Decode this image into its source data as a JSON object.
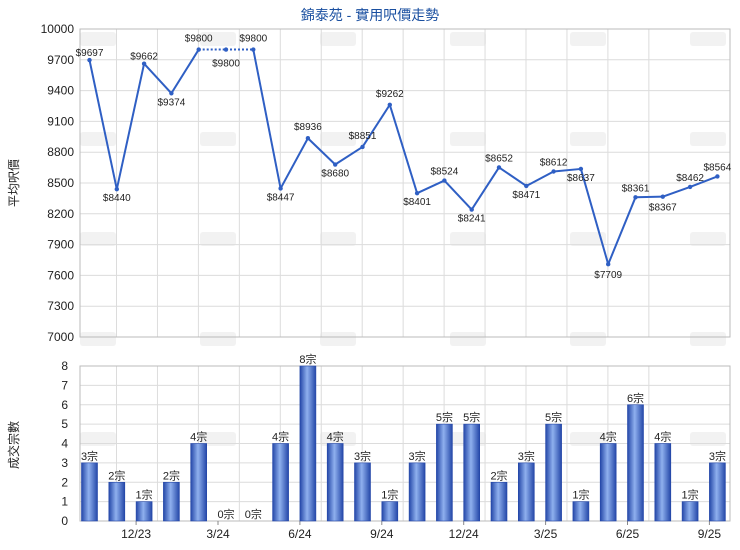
{
  "chart_data": [
    {
      "type": "line",
      "title": "錦泰苑 - 實用呎價走勢",
      "ylabel": "平均呎價",
      "ylim": [
        7000,
        10000
      ],
      "yticks": [
        7000,
        7300,
        7600,
        7900,
        8200,
        8500,
        8800,
        9100,
        9400,
        9700,
        10000
      ],
      "x_ticks": [
        "12/23",
        "3/24",
        "6/24",
        "9/24",
        "12/24",
        "3/25",
        "6/25",
        "9/25"
      ],
      "grid": true,
      "points": [
        {
          "label": "$9697",
          "value": 9697
        },
        {
          "label": "$8440",
          "value": 8440
        },
        {
          "label": "$9662",
          "value": 9662
        },
        {
          "label": "$9374",
          "value": 9374
        },
        {
          "label": "$9800",
          "value": 9800
        },
        {
          "label": "$9800",
          "value": 9800
        },
        {
          "label": "$9800",
          "value": 9800
        },
        {
          "label": "$8447",
          "value": 8447
        },
        {
          "label": "$8936",
          "value": 8936
        },
        {
          "label": "$8680",
          "value": 8680
        },
        {
          "label": "$8851",
          "value": 8851
        },
        {
          "label": "$9262",
          "value": 9262
        },
        {
          "label": "$8401",
          "value": 8401
        },
        {
          "label": "$8524",
          "value": 8524
        },
        {
          "label": "$8241",
          "value": 8241
        },
        {
          "label": "$8652",
          "value": 8652
        },
        {
          "label": "$8471",
          "value": 8471
        },
        {
          "label": "$8612",
          "value": 8612
        },
        {
          "label": "$8637",
          "value": 8637
        },
        {
          "label": "$7709",
          "value": 7709
        },
        {
          "label": "$8361",
          "value": 8361
        },
        {
          "label": "$8367",
          "value": 8367
        },
        {
          "label": "$8462",
          "value": 8462
        },
        {
          "label": "$8564",
          "value": 8564
        }
      ]
    },
    {
      "type": "bar",
      "ylabel": "成交宗數",
      "ylim": [
        0,
        8
      ],
      "yticks": [
        0,
        1,
        2,
        3,
        4,
        5,
        6,
        7,
        8
      ],
      "x_ticks": [
        "12/23",
        "3/24",
        "6/24",
        "9/24",
        "12/24",
        "3/25",
        "6/25",
        "9/25"
      ],
      "grid": true,
      "values": [
        3,
        2,
        1,
        2,
        4,
        0,
        0,
        4,
        8,
        4,
        3,
        1,
        3,
        5,
        5,
        2,
        3,
        5,
        1,
        4,
        6,
        4,
        1,
        3
      ],
      "labels": [
        "3宗",
        "2宗",
        "1宗",
        "2宗",
        "4宗",
        "0宗",
        "0宗",
        "4宗",
        "8宗",
        "4宗",
        "3宗",
        "1宗",
        "3宗",
        "5宗",
        "5宗",
        "2宗",
        "3宗",
        "5宗",
        "1宗",
        "4宗",
        "6宗",
        "4宗",
        "1宗",
        "3宗"
      ]
    }
  ],
  "colors": {
    "line": "#2f5fc4",
    "bar_dark": "#2447a8",
    "bar_light": "#8fb0ee",
    "grid": "#dcdcdc",
    "title": "#1a4fa0"
  }
}
